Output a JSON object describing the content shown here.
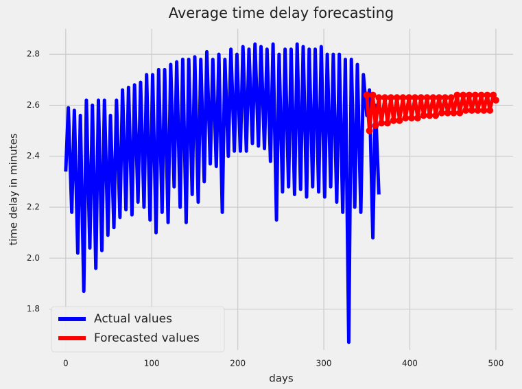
{
  "chart_data": {
    "type": "line",
    "title": "Average time delay forecasting",
    "x_label": "days",
    "y_label": "time delay in minutes",
    "xlim": [
      -19,
      520
    ],
    "ylim": [
      1.64,
      2.9
    ],
    "xticks": [
      0,
      100,
      200,
      300,
      400,
      500
    ],
    "yticks": [
      1.8,
      {
        "value": 2,
        "label": "2.0"
      },
      2.2,
      2.4,
      2.6,
      2.8
    ],
    "grid": true,
    "legend": "lower left",
    "series": [
      {
        "name": "Actual values",
        "color": "#0000ff",
        "marker": false,
        "x": [
          0,
          3,
          7,
          10,
          14,
          17,
          21,
          24,
          28,
          31,
          35,
          38,
          42,
          45,
          49,
          52,
          56,
          59,
          63,
          66,
          70,
          73,
          77,
          80,
          84,
          87,
          91,
          94,
          98,
          101,
          105,
          108,
          112,
          115,
          119,
          122,
          126,
          129,
          133,
          136,
          140,
          143,
          147,
          150,
          154,
          157,
          161,
          164,
          168,
          171,
          175,
          178,
          182,
          185,
          189,
          192,
          196,
          199,
          203,
          206,
          210,
          213,
          217,
          220,
          224,
          227,
          231,
          234,
          238,
          241,
          245,
          248,
          252,
          255,
          259,
          262,
          266,
          269,
          273,
          276,
          280,
          283,
          287,
          290,
          294,
          297,
          301,
          304,
          308,
          311,
          315,
          318,
          322,
          325,
          329,
          332,
          336,
          339,
          343,
          346,
          350,
          353,
          357,
          360,
          364
        ],
        "values": [
          2.34,
          2.59,
          2.18,
          2.58,
          2.02,
          2.56,
          1.87,
          2.62,
          2.04,
          2.6,
          1.96,
          2.62,
          2.03,
          2.62,
          2.09,
          2.56,
          2.12,
          2.62,
          2.16,
          2.66,
          2.19,
          2.67,
          2.17,
          2.68,
          2.22,
          2.69,
          2.2,
          2.72,
          2.15,
          2.72,
          2.1,
          2.74,
          2.18,
          2.74,
          2.14,
          2.76,
          2.28,
          2.77,
          2.2,
          2.78,
          2.14,
          2.78,
          2.25,
          2.79,
          2.22,
          2.78,
          2.3,
          2.81,
          2.37,
          2.78,
          2.36,
          2.8,
          2.18,
          2.78,
          2.4,
          2.82,
          2.42,
          2.8,
          2.42,
          2.83,
          2.42,
          2.82,
          2.45,
          2.84,
          2.44,
          2.83,
          2.43,
          2.82,
          2.38,
          2.84,
          2.15,
          2.8,
          2.26,
          2.82,
          2.28,
          2.82,
          2.25,
          2.84,
          2.27,
          2.83,
          2.24,
          2.82,
          2.28,
          2.82,
          2.26,
          2.83,
          2.24,
          2.8,
          2.28,
          2.8,
          2.22,
          2.8,
          2.18,
          2.78,
          1.67,
          2.78,
          2.2,
          2.76,
          2.18,
          2.72,
          2.56,
          2.66,
          2.08,
          2.6,
          2.25
        ]
      },
      {
        "name": "Forecasted values",
        "color": "#ff0000",
        "marker": true,
        "x": [
          350,
          353,
          357,
          360,
          364,
          367,
          371,
          374,
          378,
          381,
          385,
          388,
          392,
          395,
          399,
          402,
          406,
          409,
          413,
          416,
          420,
          423,
          427,
          430,
          434,
          437,
          441,
          444,
          448,
          451,
          455,
          458,
          462,
          465,
          469,
          472,
          476,
          479,
          483,
          486,
          490,
          493,
          497,
          500
        ],
        "values": [
          2.64,
          2.5,
          2.64,
          2.52,
          2.63,
          2.53,
          2.63,
          2.53,
          2.63,
          2.54,
          2.63,
          2.54,
          2.63,
          2.55,
          2.63,
          2.55,
          2.63,
          2.55,
          2.63,
          2.56,
          2.63,
          2.56,
          2.63,
          2.56,
          2.63,
          2.57,
          2.63,
          2.57,
          2.63,
          2.57,
          2.64,
          2.57,
          2.64,
          2.58,
          2.64,
          2.58,
          2.64,
          2.58,
          2.64,
          2.58,
          2.64,
          2.58,
          2.64,
          2.62
        ]
      }
    ]
  }
}
